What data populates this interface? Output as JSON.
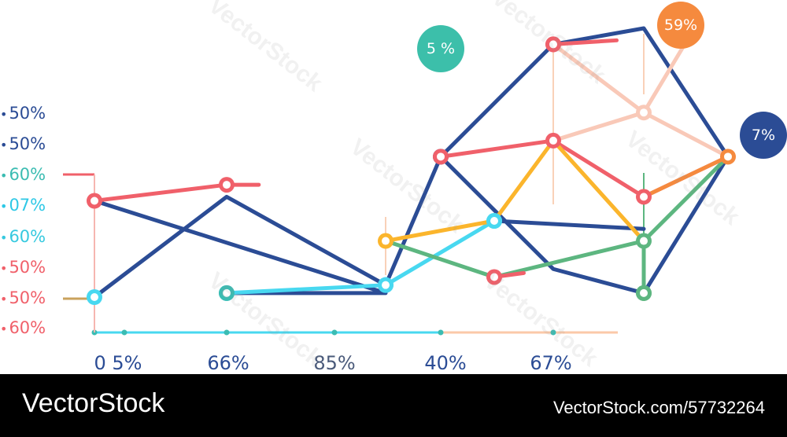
{
  "chart_data": {
    "type": "line",
    "y_labels": [
      {
        "text": "50%",
        "color": "#2b4c95"
      },
      {
        "text": "50%",
        "color": "#2b4c95"
      },
      {
        "text": "60%",
        "color": "#3bbcb2"
      },
      {
        "text": "07%",
        "color": "#2ec8e6"
      },
      {
        "text": "60%",
        "color": "#36c9df"
      },
      {
        "text": "50%",
        "color": "#f0606a"
      },
      {
        "text": "50%",
        "color": "#f0606a"
      },
      {
        "text": "60%",
        "color": "#f0606a"
      }
    ],
    "x_labels": [
      {
        "text": "0 5%",
        "color": "#2b4c95"
      },
      {
        "text": "66%",
        "color": "#2b4c95"
      },
      {
        "text": "85%",
        "color": "#4a5a7a"
      },
      {
        "text": "40%",
        "color": "#2b4c95"
      },
      {
        "text": "67%",
        "color": "#2b4c95"
      }
    ],
    "bubbles": [
      {
        "text": "5 %",
        "color": "#3cbfaa"
      },
      {
        "text": "59%",
        "color": "#f58a3e"
      },
      {
        "text": "7%",
        "color": "#2b4c95"
      }
    ],
    "series": [
      {
        "color": "#2b4c95",
        "points": [
          [
            1,
            3.5
          ],
          [
            2,
            6.0
          ],
          [
            4,
            3.8
          ],
          [
            5,
            7.0
          ],
          [
            7,
            9.8
          ],
          [
            8,
            10.2
          ],
          [
            9,
            7.0
          ],
          [
            8,
            3.6
          ],
          [
            7,
            4.2
          ],
          [
            5,
            7.0
          ],
          [
            4,
            3.8
          ]
        ],
        "markers": [
          3
        ]
      },
      {
        "color": "#2b4c95",
        "points": [
          [
            1,
            5.9
          ],
          [
            4,
            3.6
          ],
          [
            2,
            3.6
          ]
        ],
        "markers": []
      },
      {
        "color": "#2b4c95",
        "points": [
          [
            6,
            5.4
          ],
          [
            8,
            5.2
          ]
        ],
        "markers": []
      },
      {
        "color": "#f0606a",
        "points": [
          [
            1,
            5.9
          ],
          [
            2,
            6.3
          ],
          [
            2.4,
            6.3
          ]
        ],
        "markers": [
          0,
          1
        ]
      },
      {
        "color": "#f0606a",
        "points": [
          [
            5,
            7.0
          ],
          [
            7,
            7.4
          ],
          [
            8,
            6.0
          ],
          [
            9,
            7.0
          ]
        ],
        "markers": [
          0,
          1,
          2
        ]
      },
      {
        "color": "#48d8f0",
        "points": [
          [
            2,
            3.6
          ],
          [
            4,
            3.8
          ],
          [
            6,
            5.4
          ]
        ],
        "markers": [
          0,
          1,
          2
        ]
      },
      {
        "color": "#fbb52c",
        "points": [
          [
            4,
            4.9
          ],
          [
            6,
            5.4
          ],
          [
            7,
            7.4
          ],
          [
            8,
            4.9
          ]
        ],
        "markers": [
          0
        ]
      },
      {
        "color": "#5db680",
        "points": [
          [
            4,
            4.9
          ],
          [
            6,
            4.0
          ],
          [
            8,
            4.9
          ],
          [
            9,
            7.0
          ]
        ],
        "markers": [
          2
        ]
      },
      {
        "color": "#f9c9b8",
        "points": [
          [
            7,
            7.4
          ],
          [
            8,
            8.1
          ],
          [
            9,
            7.0
          ]
        ],
        "markers": [
          1
        ]
      },
      {
        "color": "#f9c9b8",
        "points": [
          [
            7,
            9.8
          ],
          [
            8,
            8.1
          ],
          [
            8.6,
            10.2
          ]
        ],
        "markers": []
      },
      {
        "color": "#f58a3e",
        "points": [
          [
            8,
            6.0
          ],
          [
            9,
            7.0
          ]
        ],
        "markers": [
          1
        ]
      },
      {
        "color": "#f0606a",
        "points": [
          [
            7,
            9.8
          ],
          [
            7.7,
            9.9
          ]
        ],
        "markers": [
          0
        ]
      },
      {
        "color": "#5db680",
        "points": [
          [
            8,
            3.6
          ],
          [
            8,
            4.9
          ]
        ],
        "markers": [
          0
        ]
      },
      {
        "color": "#f0606a",
        "points": [
          [
            6,
            4.0
          ],
          [
            6.5,
            4.1
          ]
        ],
        "markers": [
          0
        ]
      }
    ],
    "legend": "left"
  },
  "footer": {
    "brand": "VectorStock",
    "stock_id": "VectorStock.com/57732264"
  }
}
